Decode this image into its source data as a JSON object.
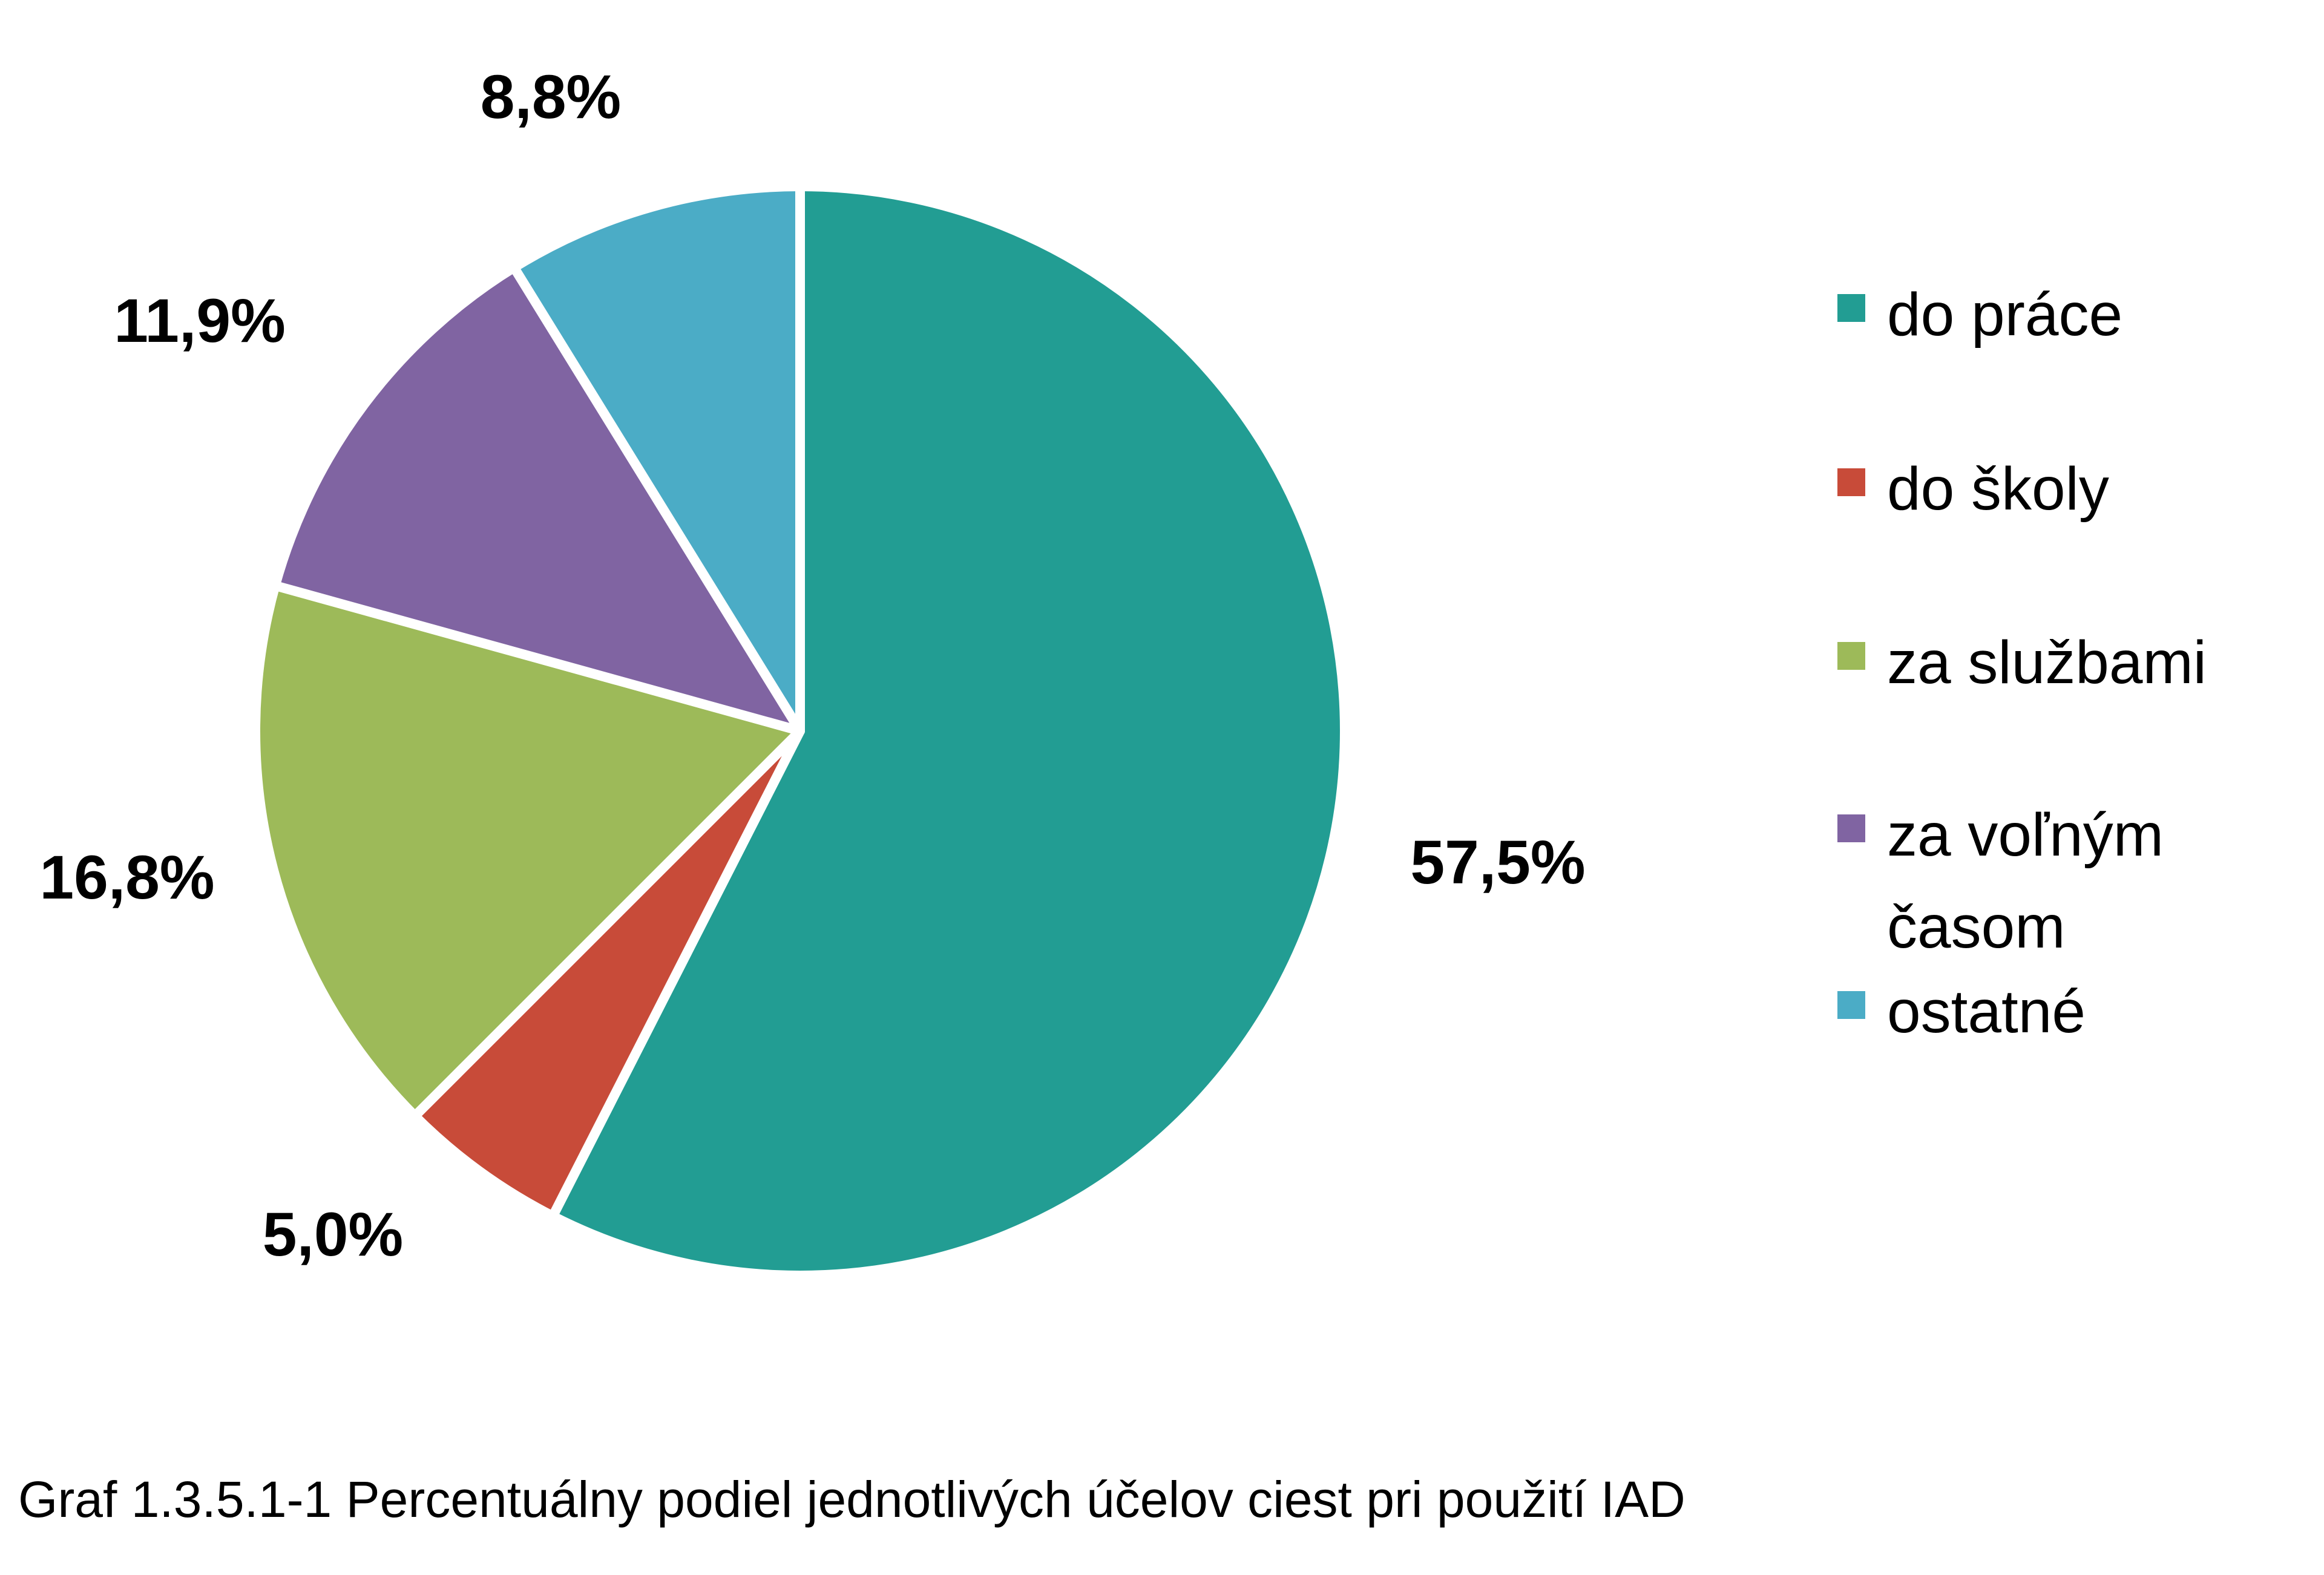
{
  "chart_data": {
    "type": "pie",
    "title": "",
    "start_angle_deg": 0,
    "direction": "clockwise",
    "slices": [
      {
        "label": "do práce",
        "value": 57.5,
        "display": "57,5%",
        "color": "#229D93"
      },
      {
        "label": "do školy",
        "value": 5.0,
        "display": "5,0%",
        "color": "#C84B39"
      },
      {
        "label": "za službami",
        "value": 16.8,
        "display": "16,8%",
        "color": "#9DBA59"
      },
      {
        "label": "za voľným časom",
        "value": 11.9,
        "display": "11,9%",
        "color": "#8064A2"
      },
      {
        "label": "ostatné",
        "value": 8.8,
        "display": "8,8%",
        "color": "#4BACC6"
      }
    ],
    "legend_position": "right"
  },
  "caption": "Graf 1.3.5.1-1 Percentuálny podiel jednotlivých účelov ciest pri použití IAD"
}
